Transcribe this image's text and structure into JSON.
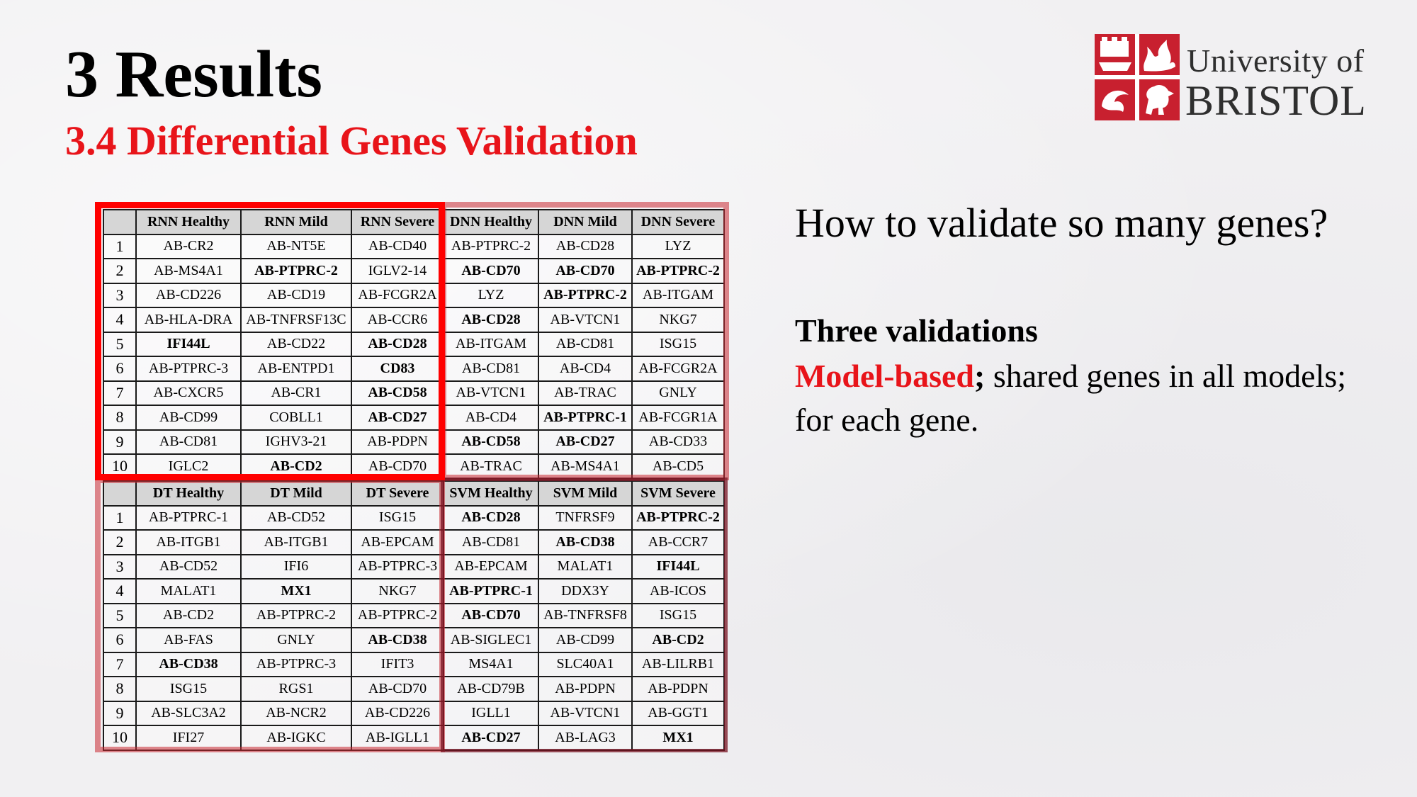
{
  "slide": {
    "title": "3 Results",
    "subtitle": "3.4 Differential Genes Validation"
  },
  "logo": {
    "line1": "University of",
    "line2": "BRISTOL",
    "color": "#c8202f"
  },
  "right_panel": {
    "question": "How to validate so many genes?",
    "heading": "Three validations",
    "highlight": "Model-based",
    "separator": ";",
    "body": " shared genes in all models; for each gene."
  },
  "colors": {
    "accent_red": "#e8141a",
    "header_gray": "#d6d6d6"
  },
  "tables": [
    {
      "name": "top",
      "headers": [
        "",
        "RNN Healthy",
        "RNN Mild",
        "RNN Severe",
        "DNN Healthy",
        "DNN Mild",
        "DNN Severe"
      ],
      "rows": [
        [
          "1",
          "AB-CR2",
          "AB-NT5E",
          "AB-CD40",
          "AB-PTPRC-2",
          "AB-CD28",
          "LYZ"
        ],
        [
          "2",
          "AB-MS4A1",
          "AB-PTPRC-2",
          "IGLV2-14",
          "AB-CD70",
          "AB-CD70",
          "AB-PTPRC-2"
        ],
        [
          "3",
          "AB-CD226",
          "AB-CD19",
          "AB-FCGR2A",
          "LYZ",
          "AB-PTPRC-2",
          "AB-ITGAM"
        ],
        [
          "4",
          "AB-HLA-DRA",
          "AB-TNFRSF13C",
          "AB-CCR6",
          "AB-CD28",
          "AB-VTCN1",
          "NKG7"
        ],
        [
          "5",
          "IFI44L",
          "AB-CD22",
          "AB-CD28",
          "AB-ITGAM",
          "AB-CD81",
          "ISG15"
        ],
        [
          "6",
          "AB-PTPRC-3",
          "AB-ENTPD1",
          "CD83",
          "AB-CD81",
          "AB-CD4",
          "AB-FCGR2A"
        ],
        [
          "7",
          "AB-CXCR5",
          "AB-CR1",
          "AB-CD58",
          "AB-VTCN1",
          "AB-TRAC",
          "GNLY"
        ],
        [
          "8",
          "AB-CD99",
          "COBLL1",
          "AB-CD27",
          "AB-CD4",
          "AB-PTPRC-1",
          "AB-FCGR1A"
        ],
        [
          "9",
          "AB-CD81",
          "IGHV3-21",
          "AB-PDPN",
          "AB-CD58",
          "AB-CD27",
          "AB-CD33"
        ],
        [
          "10",
          "IGLC2",
          "AB-CD2",
          "AB-CD70",
          "AB-TRAC",
          "AB-MS4A1",
          "AB-CD5"
        ]
      ],
      "bold_cells": [
        [
          2,
          2
        ],
        [
          2,
          4
        ],
        [
          2,
          5
        ],
        [
          2,
          6
        ],
        [
          3,
          5
        ],
        [
          4,
          4
        ],
        [
          5,
          1
        ],
        [
          5,
          3
        ],
        [
          6,
          3
        ],
        [
          7,
          3
        ],
        [
          8,
          3
        ],
        [
          8,
          5
        ],
        [
          9,
          4
        ],
        [
          9,
          5
        ],
        [
          10,
          2
        ]
      ]
    },
    {
      "name": "bottom",
      "headers": [
        "",
        "DT Healthy",
        "DT Mild",
        "DT Severe",
        "SVM Healthy",
        "SVM Mild",
        "SVM Severe"
      ],
      "rows": [
        [
          "1",
          "AB-PTPRC-1",
          "AB-CD52",
          "ISG15",
          "AB-CD28",
          "TNFRSF9",
          "AB-PTPRC-2"
        ],
        [
          "2",
          "AB-ITGB1",
          "AB-ITGB1",
          "AB-EPCAM",
          "AB-CD81",
          "AB-CD38",
          "AB-CCR7"
        ],
        [
          "3",
          "AB-CD52",
          "IFI6",
          "AB-PTPRC-3",
          "AB-EPCAM",
          "MALAT1",
          "IFI44L"
        ],
        [
          "4",
          "MALAT1",
          "MX1",
          "NKG7",
          "AB-PTPRC-1",
          "DDX3Y",
          "AB-ICOS"
        ],
        [
          "5",
          "AB-CD2",
          "AB-PTPRC-2",
          "AB-PTPRC-2",
          "AB-CD70",
          "AB-TNFRSF8",
          "ISG15"
        ],
        [
          "6",
          "AB-FAS",
          "GNLY",
          "AB-CD38",
          "AB-SIGLEC1",
          "AB-CD99",
          "AB-CD2"
        ],
        [
          "7",
          "AB-CD38",
          "AB-PTPRC-3",
          "IFIT3",
          "MS4A1",
          "SLC40A1",
          "AB-LILRB1"
        ],
        [
          "8",
          "ISG15",
          "RGS1",
          "AB-CD70",
          "AB-CD79B",
          "AB-PDPN",
          "AB-PDPN"
        ],
        [
          "9",
          "AB-SLC3A2",
          "AB-NCR2",
          "AB-CD226",
          "IGLL1",
          "AB-VTCN1",
          "AB-GGT1"
        ],
        [
          "10",
          "IFI27",
          "AB-IGKC",
          "AB-IGLL1",
          "AB-CD27",
          "AB-LAG3",
          "MX1"
        ]
      ],
      "bold_cells": [
        [
          1,
          4
        ],
        [
          1,
          6
        ],
        [
          2,
          5
        ],
        [
          3,
          6
        ],
        [
          4,
          2
        ],
        [
          4,
          4
        ],
        [
          5,
          4
        ],
        [
          6,
          3
        ],
        [
          6,
          6
        ],
        [
          7,
          1
        ],
        [
          10,
          4
        ],
        [
          10,
          6
        ]
      ]
    }
  ]
}
